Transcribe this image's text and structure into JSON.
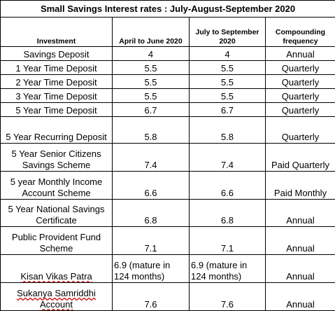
{
  "title": "Small Savings Interest rates : July-August-September 2020",
  "headers": {
    "investment": "Investment",
    "april_june": "April to June 2020",
    "july_sept": "July to September 2020",
    "compounding": "Compounding frequency"
  },
  "rows": [
    {
      "name": "Savings Deposit",
      "apr_jun": "4",
      "jul_sep": "4",
      "freq": "Annual"
    },
    {
      "name": "1 Year Time Deposit",
      "apr_jun": "5.5",
      "jul_sep": "5.5",
      "freq": "Quarterly"
    },
    {
      "name": "2 Year Time Deposit",
      "apr_jun": "5.5",
      "jul_sep": "5.5",
      "freq": "Quarterly"
    },
    {
      "name": "3 Year Time Deposit",
      "apr_jun": "5.5",
      "jul_sep": "5.5",
      "freq": "Quarterly"
    },
    {
      "name": "5 Year Time Deposit",
      "apr_jun": "6.7",
      "jul_sep": "6.7",
      "freq": "Quarterly"
    },
    {
      "name": "5 Year Recurring Deposit",
      "apr_jun": "5.8",
      "jul_sep": "5.8",
      "freq": "Quarterly"
    },
    {
      "name": "5 Year Senior Citizens Savings Scheme",
      "apr_jun": "7.4",
      "jul_sep": "7.4",
      "freq": "Paid Quarterly"
    },
    {
      "name": "5 year Monthly Income Account Scheme",
      "apr_jun": "6.6",
      "jul_sep": "6.6",
      "freq": "Paid Monthly"
    },
    {
      "name": "5 Year National Savings Certificate",
      "apr_jun": "6.8",
      "jul_sep": "6.8",
      "freq": "Annual"
    },
    {
      "name": "Public Provident Fund Scheme",
      "apr_jun": "7.1",
      "jul_sep": "7.1",
      "freq": "Annual"
    },
    {
      "name": "Kisan Vikas Patra",
      "apr_jun": "6.9 (mature in 124 months)",
      "jul_sep": "6.9 (mature in 124 months)",
      "freq": "Annual"
    },
    {
      "name": "Sukanya Samriddhi Account",
      "apr_jun": "7.6",
      "jul_sep": "7.6",
      "freq": "Annual"
    }
  ]
}
